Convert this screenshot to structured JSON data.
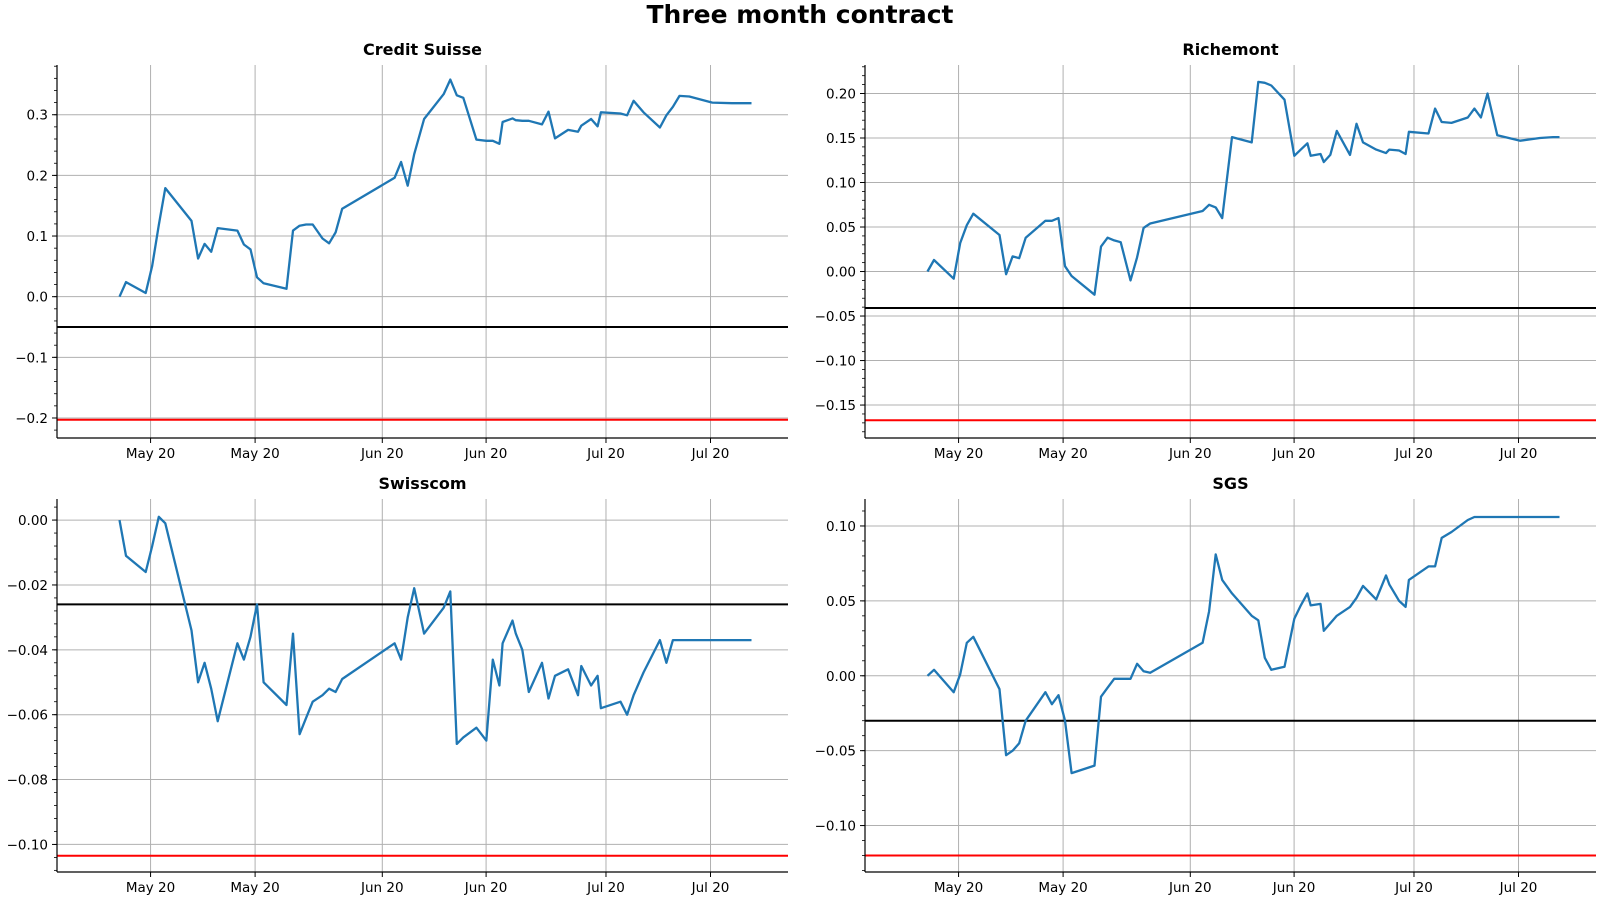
{
  "figure": {
    "title": "Three month contract"
  },
  "colors": {
    "series": "#1f77b4",
    "black_line": "#000000",
    "red_line": "#ff0000",
    "grid": "#b0b0b0"
  },
  "chart_data": [
    {
      "type": "line",
      "title": "Credit Suisse",
      "x_tick_labels": [
        "May 20",
        "May 20",
        "Jun 20",
        "Jun 20",
        "Jul 20",
        "Jul 20"
      ],
      "y_tick_labels": [
        "−0.2",
        "−0.1",
        "0.0",
        "0.1",
        "0.2",
        "0.3"
      ],
      "ylim": [
        -0.233,
        0.382
      ],
      "xlim": [
        0,
        100
      ],
      "grid": true,
      "hlines": [
        {
          "y": -0.05,
          "color": "black"
        },
        {
          "y": -0.203,
          "color": "red"
        }
      ],
      "series": [
        {
          "x": [
            4.5,
            5.5,
            8.5,
            9.5,
            10.5,
            11.5,
            15.5,
            16.5,
            17.5,
            18.5,
            19.5,
            22.5,
            23.5,
            24.5,
            25.5,
            26.5,
            30.0,
            31.0,
            32.0,
            33.0,
            34.0,
            35.5,
            36.5,
            37.5,
            38.5,
            46.5,
            47.5,
            48.5,
            49.5,
            51.0,
            54.0,
            55.0,
            56.0,
            57.0,
            59.0,
            60.5,
            61.5,
            62.5,
            63.0,
            64.5,
            65.0,
            66.0,
            67.0,
            69.0,
            70.0,
            71.0,
            73.0,
            74.5,
            75.0,
            76.5,
            77.5,
            78.0,
            81.0,
            82.0,
            83.0,
            84.5,
            87.0,
            88.0,
            89.0,
            90.0,
            91.5,
            95.0,
            98.0,
            100.0,
            101.0
          ],
          "y": [
            0.0,
            0.024,
            0.006,
            0.051,
            0.118,
            0.179,
            0.125,
            0.063,
            0.087,
            0.074,
            0.113,
            0.109,
            0.086,
            0.078,
            0.032,
            0.022,
            0.013,
            0.109,
            0.117,
            0.119,
            0.119,
            0.096,
            0.088,
            0.106,
            0.145,
            0.196,
            0.222,
            0.183,
            0.235,
            0.293,
            0.334,
            0.358,
            0.332,
            0.328,
            0.259,
            0.257,
            0.257,
            0.252,
            0.288,
            0.294,
            0.291,
            0.29,
            0.29,
            0.284,
            0.305,
            0.261,
            0.275,
            0.272,
            0.282,
            0.293,
            0.281,
            0.304,
            0.302,
            0.299,
            0.323,
            0.304,
            0.279,
            0.299,
            0.313,
            0.331,
            0.33,
            0.32,
            0.319,
            0.319,
            0.319
          ]
        }
      ]
    },
    {
      "type": "line",
      "title": "Richemont",
      "x_tick_labels": [
        "May 20",
        "May 20",
        "Jun 20",
        "Jun 20",
        "Jul 20",
        "Jul 20"
      ],
      "y_tick_labels": [
        "−0.15",
        "−0.10",
        "−0.05",
        "0.00",
        "0.05",
        "0.10",
        "0.15",
        "0.20"
      ],
      "ylim": [
        -0.187,
        0.232
      ],
      "xlim": [
        0,
        100
      ],
      "grid": true,
      "hlines": [
        {
          "y": -0.041,
          "color": "black"
        },
        {
          "y": -0.167,
          "color": "red"
        }
      ],
      "series": [
        {
          "x": [
            4.5,
            5.5,
            8.5,
            9.5,
            10.5,
            11.5,
            15.5,
            16.5,
            17.5,
            18.5,
            19.5,
            22.5,
            23.5,
            24.5,
            25.5,
            26.5,
            30.0,
            31.0,
            32.0,
            33.0,
            34.0,
            35.5,
            36.5,
            37.5,
            38.5,
            46.5,
            47.5,
            48.5,
            49.5,
            51.0,
            54.0,
            55.0,
            56.0,
            57.0,
            59.0,
            60.5,
            61.5,
            62.5,
            63.0,
            64.5,
            65.0,
            66.0,
            67.0,
            69.0,
            70.0,
            71.0,
            73.0,
            74.5,
            75.0,
            76.5,
            77.5,
            78.0,
            81.0,
            82.0,
            83.0,
            84.5,
            87.0,
            88.0,
            89.0,
            90.0,
            91.5,
            95.0,
            98.0,
            100.0,
            101.0
          ],
          "y": [
            0.0,
            0.013,
            -0.008,
            0.032,
            0.052,
            0.065,
            0.041,
            -0.003,
            0.017,
            0.015,
            0.038,
            0.057,
            0.057,
            0.06,
            0.006,
            -0.005,
            -0.026,
            0.028,
            0.038,
            0.035,
            0.033,
            -0.01,
            0.016,
            0.049,
            0.054,
            0.068,
            0.075,
            0.072,
            0.06,
            0.151,
            0.145,
            0.213,
            0.212,
            0.209,
            0.193,
            0.13,
            0.137,
            0.144,
            0.13,
            0.132,
            0.123,
            0.131,
            0.158,
            0.131,
            0.166,
            0.145,
            0.137,
            0.133,
            0.137,
            0.136,
            0.132,
            0.157,
            0.155,
            0.183,
            0.168,
            0.167,
            0.173,
            0.183,
            0.173,
            0.2,
            0.153,
            0.147,
            0.15,
            0.151,
            0.151
          ]
        }
      ]
    },
    {
      "type": "line",
      "title": "Swisscom",
      "x_tick_labels": [
        "May 20",
        "May 20",
        "Jun 20",
        "Jun 20",
        "Jul 20",
        "Jul 20"
      ],
      "y_tick_labels": [
        "−0.10",
        "−0.08",
        "−0.06",
        "−0.04",
        "−0.02",
        "0.00"
      ],
      "ylim": [
        -0.1085,
        0.0065
      ],
      "xlim": [
        0,
        100
      ],
      "grid": true,
      "hlines": [
        {
          "y": -0.026,
          "color": "black"
        },
        {
          "y": -0.1035,
          "color": "red"
        }
      ],
      "series": [
        {
          "x": [
            4.5,
            5.5,
            8.5,
            9.5,
            10.5,
            11.5,
            15.5,
            16.5,
            17.5,
            18.5,
            19.5,
            22.5,
            23.5,
            24.5,
            25.5,
            26.5,
            30.0,
            31.0,
            32.0,
            33.0,
            34.0,
            35.5,
            36.5,
            37.5,
            38.5,
            46.5,
            47.5,
            48.5,
            49.5,
            51.0,
            54.0,
            55.0,
            56.0,
            57.0,
            59.0,
            60.5,
            61.5,
            62.5,
            63.0,
            64.5,
            65.0,
            66.0,
            67.0,
            69.0,
            70.0,
            71.0,
            73.0,
            74.5,
            75.0,
            76.5,
            77.5,
            78.0,
            81.0,
            82.0,
            83.0,
            84.5,
            87.0,
            88.0,
            89.0,
            90.0,
            91.5,
            95.0,
            98.0,
            100.0,
            101.0
          ],
          "y": [
            0.0,
            -0.011,
            -0.016,
            -0.008,
            0.001,
            -0.001,
            -0.034,
            -0.05,
            -0.044,
            -0.052,
            -0.062,
            -0.038,
            -0.043,
            -0.036,
            -0.026,
            -0.05,
            -0.057,
            -0.035,
            -0.066,
            -0.061,
            -0.056,
            -0.054,
            -0.052,
            -0.053,
            -0.049,
            -0.038,
            -0.043,
            -0.03,
            -0.021,
            -0.035,
            -0.027,
            -0.022,
            -0.069,
            -0.067,
            -0.064,
            -0.068,
            -0.043,
            -0.051,
            -0.038,
            -0.031,
            -0.035,
            -0.04,
            -0.053,
            -0.044,
            -0.055,
            -0.048,
            -0.046,
            -0.054,
            -0.045,
            -0.051,
            -0.048,
            -0.058,
            -0.056,
            -0.06,
            -0.054,
            -0.047,
            -0.037,
            -0.044,
            -0.037,
            -0.037,
            -0.037,
            -0.037,
            -0.037,
            -0.037,
            -0.037
          ]
        }
      ]
    },
    {
      "type": "line",
      "title": "SGS",
      "x_tick_labels": [
        "May 20",
        "May 20",
        "Jun 20",
        "Jun 20",
        "Jul 20",
        "Jul 20"
      ],
      "y_tick_labels": [
        "−0.10",
        "−0.05",
        "0.00",
        "0.05",
        "0.10"
      ],
      "ylim": [
        -0.131,
        0.118
      ],
      "xlim": [
        0,
        100
      ],
      "grid": true,
      "hlines": [
        {
          "y": -0.03,
          "color": "black"
        },
        {
          "y": -0.12,
          "color": "red"
        }
      ],
      "series": [
        {
          "x": [
            4.5,
            5.5,
            8.5,
            9.5,
            10.5,
            11.5,
            15.5,
            16.5,
            17.5,
            18.5,
            19.5,
            22.5,
            23.5,
            24.5,
            25.5,
            26.5,
            30.0,
            31.0,
            32.0,
            33.0,
            34.0,
            35.5,
            36.5,
            37.5,
            38.5,
            46.5,
            47.5,
            48.5,
            49.5,
            51.0,
            54.0,
            55.0,
            56.0,
            57.0,
            59.0,
            60.5,
            61.5,
            62.5,
            63.0,
            64.5,
            65.0,
            66.0,
            67.0,
            69.0,
            70.0,
            71.0,
            73.0,
            74.5,
            75.0,
            76.5,
            77.5,
            78.0,
            81.0,
            82.0,
            83.0,
            84.5,
            87.0,
            88.0,
            89.0,
            90.0,
            91.5,
            95.0,
            98.0,
            100.0,
            101.0
          ],
          "y": [
            0.0,
            0.004,
            -0.011,
            0.001,
            0.022,
            0.026,
            -0.009,
            -0.053,
            -0.05,
            -0.045,
            -0.03,
            -0.011,
            -0.019,
            -0.013,
            -0.03,
            -0.065,
            -0.06,
            -0.014,
            -0.008,
            -0.002,
            -0.002,
            -0.002,
            0.008,
            0.003,
            0.002,
            0.022,
            0.043,
            0.081,
            0.064,
            0.055,
            0.04,
            0.037,
            0.012,
            0.004,
            0.006,
            0.038,
            0.047,
            0.055,
            0.047,
            0.048,
            0.03,
            0.035,
            0.04,
            0.046,
            0.052,
            0.06,
            0.051,
            0.067,
            0.061,
            0.05,
            0.046,
            0.064,
            0.073,
            0.073,
            0.092,
            0.096,
            0.104,
            0.106,
            0.106,
            0.106,
            0.106,
            0.106,
            0.106,
            0.106,
            0.106
          ]
        }
      ]
    }
  ]
}
